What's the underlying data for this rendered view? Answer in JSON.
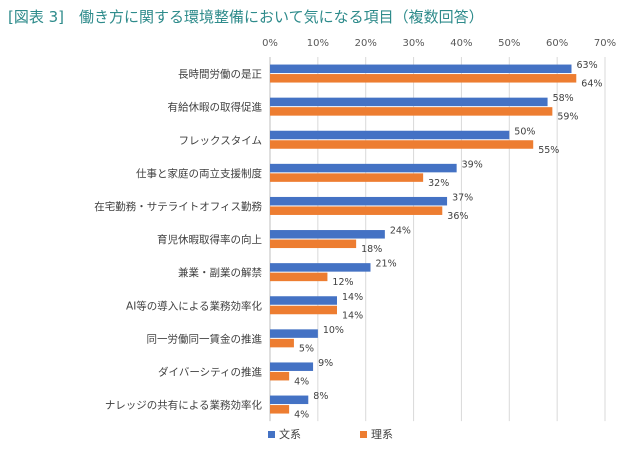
{
  "chart_data": {
    "type": "bar",
    "orientation": "horizontal",
    "title": "[図表 3]　働き方に関する環境整備において気になる項目（複数回答）",
    "categories": [
      "長時間労働の是正",
      "有給休暇の取得促進",
      "フレックスタイム",
      "仕事と家庭の両立支援制度",
      "在宅勤務・サテライトオフィス勤務",
      "育児休暇取得率の向上",
      "兼業・副業の解禁",
      "AI等の導入による業務効率化",
      "同一労働同一賃金の推進",
      "ダイバーシティの推進",
      "ナレッジの共有による業務効率化"
    ],
    "series": [
      {
        "name": "文系",
        "color": "#4472c4",
        "values": [
          63,
          58,
          50,
          39,
          37,
          24,
          21,
          14,
          10,
          9,
          8
        ]
      },
      {
        "name": "理系",
        "color": "#ed7d31",
        "values": [
          64,
          59,
          55,
          32,
          36,
          18,
          12,
          14,
          5,
          4,
          4
        ]
      }
    ],
    "value_suffix": "%",
    "xlim": [
      0,
      70
    ],
    "ticks": [
      0,
      10,
      20,
      30,
      40,
      50,
      60,
      70
    ],
    "tick_labels": [
      "0%",
      "10%",
      "20%",
      "30%",
      "40%",
      "50%",
      "60%",
      "70%"
    ],
    "axis_position": "top",
    "grid": true,
    "legend_position": "bottom"
  }
}
